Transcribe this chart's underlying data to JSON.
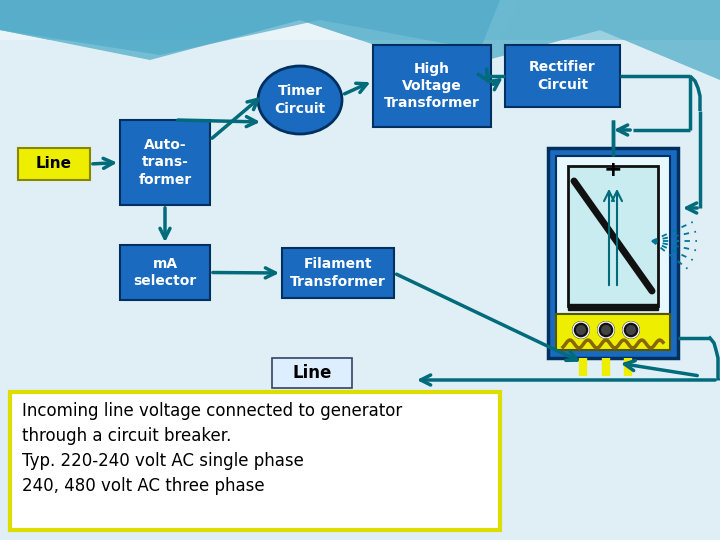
{
  "bg_color": "#d0e8f0",
  "bg_color2": "#e8f4f8",
  "box_color": "#1a6abf",
  "box_text_color": "#ffffff",
  "arrow_color": "#006b7b",
  "line_box_color": "#eeee00",
  "line_box_border": "#888800",
  "autotransformer_label": "Auto-\ntrans-\nformer",
  "timer_circuit_label": "Timer\nCircuit",
  "high_voltage_label": "High\nVoltage\nTransformer",
  "rectifier_label": "Rectifier\nCircuit",
  "ma_selector_label": "mA\nselector",
  "filament_label": "Filament\nTransformer",
  "line_label": "Line",
  "line_label2": "Line",
  "description": "Incoming line voltage connected to generator\nthrough a circuit breaker.\nTyp. 220-240 volt AC single phase\n240, 480 volt AC three phase",
  "desc_border_color": "#dddd00",
  "tube_color": "#1a6abf",
  "tube_inner_color": "#b8e0e8",
  "tube_body_color": "#c8ecf0",
  "tube_anode_color": "#111111",
  "filament_color": "#eeee00",
  "pin_color": "#eeee00",
  "ray_color": "#007799",
  "wave1_color": "#a8d8e8",
  "wave2_color": "#78c0d8"
}
